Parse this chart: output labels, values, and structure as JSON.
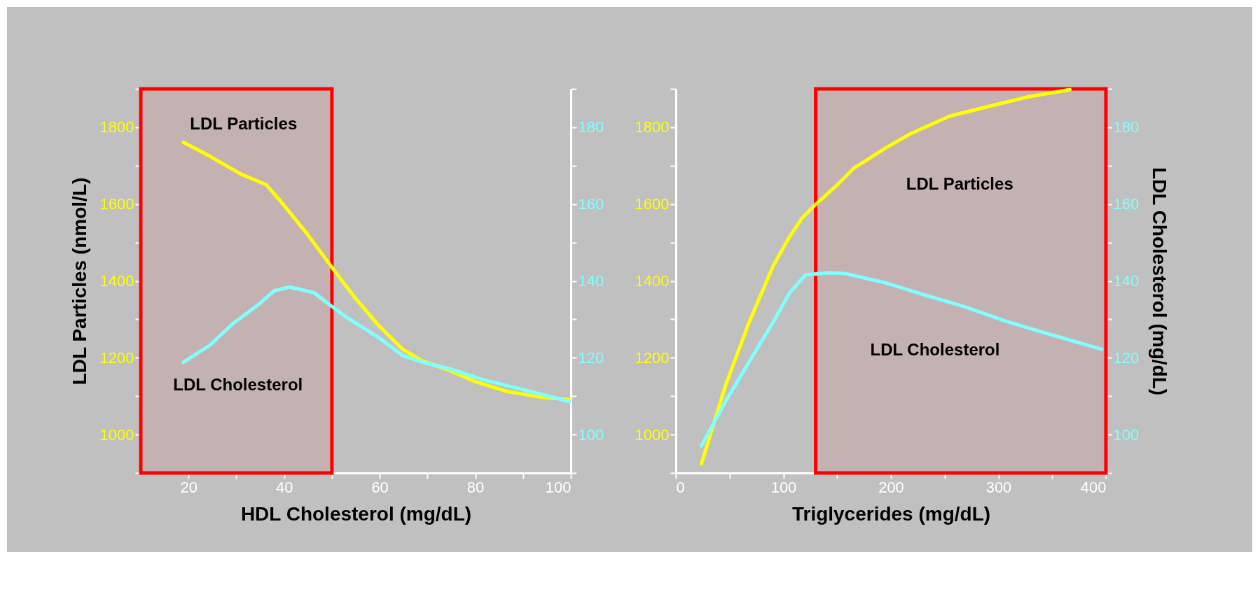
{
  "chart_data": [
    {
      "type": "line",
      "xlabel": "HDL Cholesterol (mg/dL)",
      "ylabel": "LDL Particles  (nmol/L)",
      "xlim": [
        10,
        100
      ],
      "xticks": [
        20,
        {
          "value": 30,
          "label": null
        },
        40,
        {
          "value": 50,
          "label": null
        },
        60,
        {
          "value": 70,
          "label": null
        },
        80,
        {
          "value": 90,
          "label": null
        },
        100
      ],
      "ylim": [
        900,
        1900
      ],
      "yticks": [
        {
          "value": 900,
          "label": null
        },
        1000,
        {
          "value": 1100,
          "label": null
        },
        1200,
        {
          "value": 1300,
          "label": null
        },
        1400,
        {
          "value": 1500,
          "label": null
        },
        1600,
        {
          "value": 1700,
          "label": null
        },
        1800,
        {
          "value": 1900,
          "label": null
        }
      ],
      "y2lim": [
        90,
        190
      ],
      "y2ticks": [
        {
          "value": 90,
          "label": null
        },
        100,
        {
          "value": 110,
          "label": null
        },
        120,
        {
          "value": 130,
          "label": null
        },
        140,
        {
          "value": 150,
          "label": null
        },
        160,
        {
          "value": 170,
          "label": null
        },
        180,
        {
          "value": 190,
          "label": null
        }
      ],
      "series": [
        {
          "color": "#ffff00",
          "x": [
            18.9,
            24.4,
            31.1,
            36.2,
            39.5,
            44.6,
            49.6,
            54.7,
            59.7,
            64.8,
            69,
            74,
            80,
            86.7,
            93.4,
            99.7
          ],
          "values": [
            1761,
            1725,
            1677,
            1651,
            1604,
            1526,
            1442,
            1358,
            1285,
            1222,
            1191,
            1170,
            1138,
            1112,
            1098,
            1091
          ]
        },
        {
          "color": "#80ffff",
          "axis": "y2",
          "x": [
            18.9,
            24.4,
            29.4,
            34.5,
            37.9,
            41.2,
            46.3,
            49.6,
            53,
            59.7,
            64.8,
            69.9,
            75,
            81.6,
            90,
            99.7
          ],
          "values": [
            118.8,
            123.2,
            129,
            133.7,
            137.4,
            138.4,
            136.9,
            133.7,
            130.6,
            125.3,
            120.6,
            118.5,
            117,
            114.3,
            111.7,
            108.6
          ]
        }
      ],
      "bands": [
        {
          "axis": "x",
          "from": 10,
          "to": 50,
          "color": "#ff0000"
        }
      ],
      "annotations": [
        "LDL Particles",
        "LDL Cholesterol"
      ]
    },
    {
      "type": "line",
      "xlabel": "Triglycerides (mg/dL)",
      "y2label": "LDL Cholesterol  (mg/dL)",
      "xlim": [
        0,
        400
      ],
      "xticks": [
        0,
        {
          "value": 50,
          "label": null
        },
        100,
        {
          "value": 150,
          "label": null
        },
        200,
        {
          "value": 250,
          "label": null
        },
        300,
        {
          "value": 350,
          "label": null
        },
        400
      ],
      "ylim": [
        900,
        1900
      ],
      "yticks": [
        {
          "value": 900,
          "label": null
        },
        1000,
        {
          "value": 1100,
          "label": null
        },
        1200,
        {
          "value": 1300,
          "label": null
        },
        1400,
        {
          "value": 1500,
          "label": null
        },
        1600,
        {
          "value": 1700,
          "label": null
        },
        1800,
        {
          "value": 1900,
          "label": null
        }
      ],
      "y2lim": [
        90,
        190
      ],
      "y2ticks": [
        {
          "value": 90,
          "label": null
        },
        100,
        {
          "value": 110,
          "label": null
        },
        120,
        {
          "value": 130,
          "label": null
        },
        140,
        {
          "value": 150,
          "label": null
        },
        160,
        {
          "value": 170,
          "label": null
        },
        180,
        {
          "value": 190,
          "label": null
        }
      ],
      "series": [
        {
          "color": "#ffff00",
          "x": [
            23.8,
            46.2,
            68.5,
            91,
            105.8,
            117,
            128,
            150.5,
            165.4,
            195,
            217.5,
            254.7,
            292,
            329,
            366.5
          ],
          "values": [
            924,
            1128,
            1295,
            1442,
            1515,
            1562,
            1594,
            1651,
            1693,
            1746,
            1782,
            1829,
            1855,
            1880,
            1898
          ]
        },
        {
          "color": "#80ffff",
          "axis": "y2",
          "x": [
            23.8,
            46.2,
            68.5,
            91,
            105.8,
            120.7,
            143,
            158,
            195,
            232,
            269.6,
            307,
            344,
            396
          ],
          "values": [
            97.1,
            108.6,
            119.1,
            129.5,
            136.9,
            141.6,
            142.1,
            141.9,
            139.5,
            136.3,
            133.2,
            129.5,
            126.4,
            122.2
          ]
        }
      ],
      "bands": [
        {
          "axis": "x",
          "from": 130,
          "to": 400,
          "color": "#ff0000"
        }
      ],
      "annotations": [
        "LDL Particles",
        "LDL Cholesterol"
      ]
    }
  ]
}
